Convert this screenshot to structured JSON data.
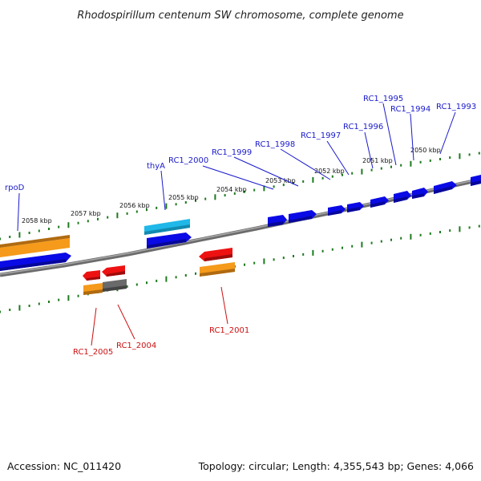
{
  "header": {
    "title": "Rhodospirillum centenum SW chromosome, complete genome"
  },
  "footer": {
    "accession": "Accession: NC_011420",
    "topology": "Topology: circular; Length: 4,355,543 bp; Genes: 4,066"
  },
  "scale_labels": [
    "2058 kbp",
    "2057 kbp",
    "2056 kbp",
    "2055 kbp",
    "2054 kbp",
    "2053 kbp",
    "2052 kbp",
    "2051 kbp",
    "2050 kbp"
  ],
  "colors": {
    "cds_forward": "#0a0ae6",
    "cds_reverse": "#ee1111",
    "rna": "#1fb8e8",
    "gene_orange": "#f59a1a",
    "gene_gray": "#6a6a6a",
    "backbone": "#808080",
    "ticks": "#1d7a1d",
    "label_forward": "#1a1acc",
    "label_reverse": "#cc1111"
  },
  "genes_forward": [
    "rpoD",
    "thyA",
    "RC1_2000",
    "RC1_1999",
    "RC1_1998",
    "RC1_1997",
    "RC1_1996",
    "RC1_1995",
    "RC1_1994",
    "RC1_1993"
  ],
  "genes_reverse": [
    "RC1_2005",
    "RC1_2004",
    "RC1_2001"
  ]
}
